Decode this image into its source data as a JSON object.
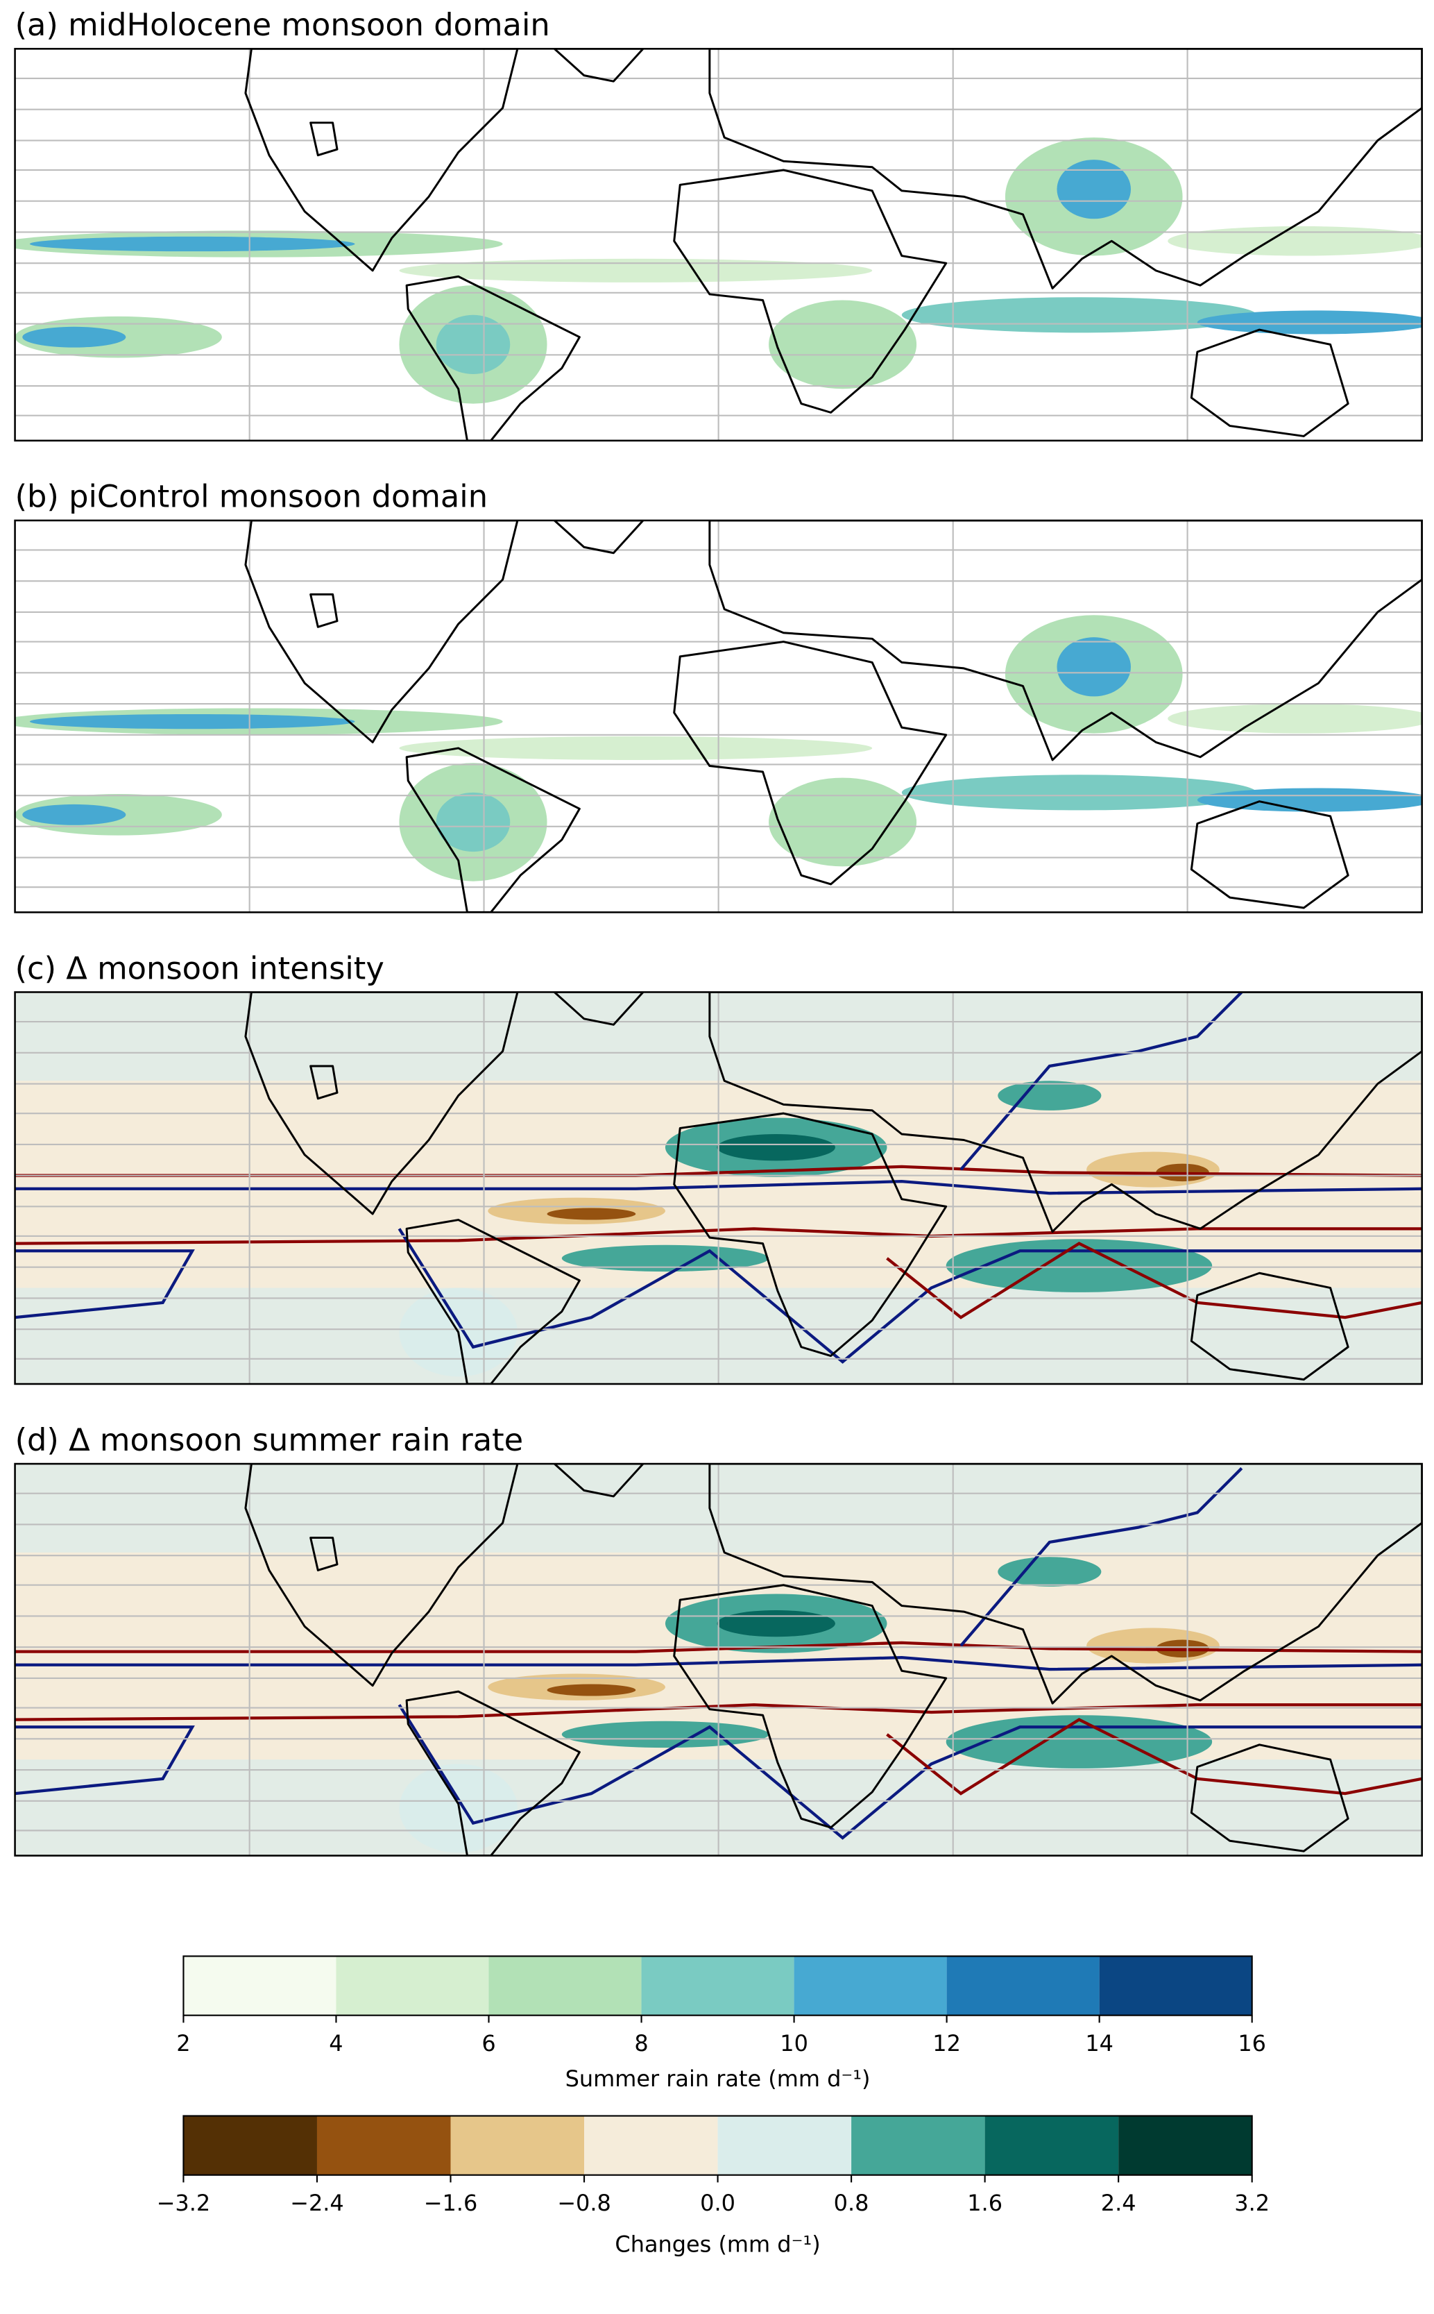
{
  "panels": [
    {
      "title": "(a) midHolocene monsoon domain"
    },
    {
      "title": "(b) piControl monsoon domain"
    },
    {
      "title": "(c) Δ monsoon intensity"
    },
    {
      "title": "(d) Δ monsoon summer rain rate"
    }
  ],
  "colorbars": [
    {
      "label": "Summer rain rate (mm d⁻¹)",
      "ticks": [
        2,
        4,
        6,
        8,
        10,
        12,
        14,
        16
      ],
      "colors": [
        "#f5fbef",
        "#d6efd0",
        "#b2e1b6",
        "#7acbc2",
        "#47a9d2",
        "#1f7ab6",
        "#0b4683"
      ]
    },
    {
      "label": "Changes (mm d⁻¹)",
      "ticks": [
        {
          "value": -3.2,
          "label": "−3.2"
        },
        {
          "value": -2.4,
          "label": "−2.4"
        },
        {
          "value": -1.6,
          "label": "−1.6"
        },
        {
          "value": -0.8,
          "label": "−0.8"
        },
        {
          "value": 0,
          "label": "0.0"
        },
        0.8,
        1.6,
        2.4,
        3.2
      ],
      "colors": [
        "#543005",
        "#955210",
        "#e6c68a",
        "#f5ecda",
        "#daedeb",
        "#45a798",
        "#07675e",
        "#003a30"
      ]
    }
  ]
}
